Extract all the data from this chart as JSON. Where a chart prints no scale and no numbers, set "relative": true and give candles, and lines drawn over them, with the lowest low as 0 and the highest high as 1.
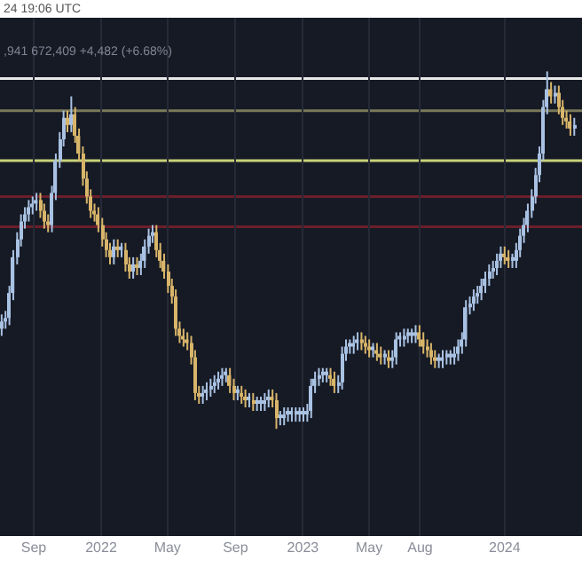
{
  "chart_data": {
    "type": "candlestick",
    "relative": true,
    "annotations": [
      "24 19:06 UTC",
      ",941 672,409 +4,482 (+6.68%)"
    ],
    "colors": [
      "#a9c2e3",
      "#a9c2e3",
      "#a9c2e3",
      "#a9c2e3",
      "#a9c2e3",
      "#a9c2e3",
      "#a9c2e3",
      "#a9c2e3",
      "#a9c2e3",
      "#a9c2e3",
      "#d8b56a",
      "#d8b56a",
      "#d8b56a",
      "#a9c2e3",
      "#a9c2e3",
      "#a9c2e3",
      "#a9c2e3",
      "#d8b56a",
      "#a9c2e3",
      "#d8b56a",
      "#d8b56a",
      "#d8b56a",
      "#d8b56a",
      "#d8b56a",
      "#d8b56a",
      "#d8b56a",
      "#d8b56a",
      "#d8b56a",
      "#d8b56a",
      "#a9c2e3",
      "#d8b56a",
      "#a9c2e3",
      "#d8b56a",
      "#d8b56a",
      "#a9c2e3",
      "#d8b56a",
      "#a9c2e3",
      "#a9c2e3",
      "#a9c2e3",
      "#a9c2e3",
      "#d8b56a",
      "#d8b56a",
      "#d8b56a",
      "#d8b56a",
      "#d8b56a",
      "#d8b56a",
      "#d8b56a",
      "#d8b56a",
      "#d8b56a",
      "#d8b56a",
      "#d8b56a",
      "#d8b56a",
      "#a9c2e3",
      "#a9c2e3",
      "#a9c2e3",
      "#a9c2e3",
      "#a9c2e3",
      "#a9c2e3",
      "#a9c2e3",
      "#d8b56a",
      "#d8b56a",
      "#a9c2e3",
      "#d8b56a",
      "#d8b56a",
      "#a9c2e3",
      "#d8b56a",
      "#a9c2e3",
      "#a9c2e3",
      "#a9c2e3",
      "#a9c2e3",
      "#d8b56a",
      "#d8b56a",
      "#a9c2e3",
      "#a9c2e3",
      "#a9c2e3",
      "#a9c2e3",
      "#a9c2e3",
      "#a9c2e3",
      "#a9c2e3",
      "#a9c2e3",
      "#a9c2e3",
      "#a9c2e3",
      "#a9c2e3",
      "#a9c2e3",
      "#a9c2e3",
      "#d8b56a",
      "#d8b56a",
      "#a9c2e3",
      "#a9c2e3",
      "#a9c2e3",
      "#a9c2e3",
      "#a9c2e3",
      "#a9c2e3",
      "#d8b56a",
      "#d8b56a",
      "#d8b56a",
      "#a9c2e3",
      "#d8b56a",
      "#d8b56a",
      "#a9c2e3",
      "#d8b56a",
      "#a9c2e3",
      "#a9c2e3",
      "#a9c2e3",
      "#a9c2e3",
      "#a9c2e3",
      "#a9c2e3",
      "#a9c2e3",
      "#d8b56a",
      "#d8b56a",
      "#d8b56a",
      "#d8b56a",
      "#d8b56a",
      "#a9c2e3",
      "#a9c2e3",
      "#a9c2e3",
      "#a9c2e3",
      "#a9c2e3",
      "#a9c2e3",
      "#a9c2e3",
      "#a9c2e3",
      "#a9c2e3",
      "#a9c2e3",
      "#a9c2e3",
      "#a9c2e3",
      "#a9c2e3",
      "#a9c2e3",
      "#a9c2e3",
      "#a9c2e3",
      "#a9c2e3",
      "#d8b56a",
      "#d8b56a",
      "#a9c2e3",
      "#a9c2e3",
      "#a9c2e3",
      "#a9c2e3",
      "#a9c2e3",
      "#a9c2e3",
      "#a9c2e3",
      "#a9c2e3",
      "#a9c2e3",
      "#a9c2e3",
      "#d8b56a",
      "#a9c2e3",
      "#d8b56a",
      "#d8b56a",
      "#d8b56a",
      "#d8b56a",
      "#a9c2e3"
    ],
    "x": [
      "2021-07-05",
      "2021-07-12",
      "2021-07-19",
      "2021-07-26",
      "2021-08-02",
      "2021-08-09",
      "2021-08-16",
      "2021-08-23",
      "2021-08-30",
      "2021-09-06",
      "2021-09-13",
      "2021-09-20",
      "2021-09-27",
      "2021-10-04",
      "2021-10-11",
      "2021-10-18",
      "2021-10-25",
      "2021-11-01",
      "2021-11-08",
      "2021-11-15",
      "2021-11-22",
      "2021-11-29",
      "2021-12-06",
      "2021-12-13",
      "2021-12-20",
      "2021-12-27",
      "2022-01-03",
      "2022-01-10",
      "2022-01-17",
      "2022-01-24",
      "2022-01-31",
      "2022-02-07",
      "2022-02-14",
      "2022-02-21",
      "2022-02-28",
      "2022-03-07",
      "2022-03-14",
      "2022-03-21",
      "2022-03-28",
      "2022-04-04",
      "2022-04-11",
      "2022-04-18",
      "2022-04-25",
      "2022-05-02",
      "2022-05-09",
      "2022-05-16",
      "2022-05-23",
      "2022-05-30",
      "2022-06-06",
      "2022-06-13",
      "2022-06-20",
      "2022-06-27",
      "2022-07-04",
      "2022-07-11",
      "2022-07-18",
      "2022-07-25",
      "2022-08-01",
      "2022-08-08",
      "2022-08-15",
      "2022-08-22",
      "2022-08-29",
      "2022-09-05",
      "2022-09-12",
      "2022-09-19",
      "2022-09-26",
      "2022-10-03",
      "2022-10-10",
      "2022-10-17",
      "2022-10-24",
      "2022-10-31",
      "2022-11-07",
      "2022-11-14",
      "2022-11-21",
      "2022-11-28",
      "2022-12-05",
      "2022-12-12",
      "2022-12-19",
      "2022-12-26",
      "2023-01-02",
      "2023-01-09",
      "2023-01-16",
      "2023-01-23",
      "2023-01-30",
      "2023-02-06",
      "2023-02-13",
      "2023-02-20",
      "2023-02-27",
      "2023-03-06",
      "2023-03-13",
      "2023-03-20",
      "2023-03-27",
      "2023-04-03",
      "2023-04-10",
      "2023-04-17",
      "2023-04-24",
      "2023-05-01",
      "2023-05-08",
      "2023-05-15",
      "2023-05-22",
      "2023-05-29",
      "2023-06-05",
      "2023-06-12",
      "2023-06-19",
      "2023-06-26",
      "2023-07-03",
      "2023-07-10",
      "2023-07-17",
      "2023-07-24",
      "2023-07-31",
      "2023-08-07",
      "2023-08-14",
      "2023-08-21",
      "2023-08-28",
      "2023-09-04",
      "2023-09-11",
      "2023-09-18",
      "2023-09-25",
      "2023-10-02",
      "2023-10-09",
      "2023-10-16",
      "2023-10-23",
      "2023-10-30",
      "2023-11-06",
      "2023-11-13",
      "2023-11-20",
      "2023-11-27",
      "2023-12-04",
      "2023-12-11",
      "2023-12-18",
      "2023-12-25",
      "2024-01-01",
      "2024-01-08",
      "2024-01-15",
      "2024-01-22",
      "2024-01-29",
      "2024-02-05",
      "2024-02-12",
      "2024-02-19",
      "2024-02-26",
      "2024-03-04",
      "2024-03-11",
      "2024-03-18",
      "2024-03-25",
      "2024-04-01",
      "2024-04-08",
      "2024-04-15",
      "2024-04-22",
      "2024-04-29",
      "2024-05-06"
    ],
    "ohlc": [
      [
        0.28,
        0.32,
        0.26,
        0.3
      ],
      [
        0.3,
        0.33,
        0.28,
        0.31
      ],
      [
        0.31,
        0.4,
        0.29,
        0.38
      ],
      [
        0.38,
        0.5,
        0.36,
        0.48
      ],
      [
        0.48,
        0.55,
        0.46,
        0.53
      ],
      [
        0.53,
        0.6,
        0.51,
        0.58
      ],
      [
        0.58,
        0.62,
        0.56,
        0.6
      ],
      [
        0.6,
        0.64,
        0.58,
        0.62
      ],
      [
        0.62,
        0.65,
        0.6,
        0.63
      ],
      [
        0.63,
        0.66,
        0.61,
        0.64
      ],
      [
        0.64,
        0.66,
        0.59,
        0.61
      ],
      [
        0.61,
        0.63,
        0.56,
        0.58
      ],
      [
        0.58,
        0.6,
        0.55,
        0.57
      ],
      [
        0.57,
        0.68,
        0.55,
        0.66
      ],
      [
        0.66,
        0.77,
        0.64,
        0.75
      ],
      [
        0.75,
        0.83,
        0.73,
        0.81
      ],
      [
        0.81,
        0.89,
        0.79,
        0.87
      ],
      [
        0.87,
        0.89,
        0.83,
        0.85
      ],
      [
        0.85,
        0.93,
        0.83,
        0.88
      ],
      [
        0.88,
        0.9,
        0.8,
        0.82
      ],
      [
        0.82,
        0.84,
        0.75,
        0.77
      ],
      [
        0.77,
        0.79,
        0.68,
        0.7
      ],
      [
        0.7,
        0.72,
        0.63,
        0.65
      ],
      [
        0.65,
        0.67,
        0.59,
        0.61
      ],
      [
        0.61,
        0.63,
        0.58,
        0.6
      ],
      [
        0.6,
        0.62,
        0.55,
        0.57
      ],
      [
        0.57,
        0.59,
        0.51,
        0.53
      ],
      [
        0.53,
        0.55,
        0.48,
        0.5
      ],
      [
        0.5,
        0.52,
        0.46,
        0.48
      ],
      [
        0.48,
        0.53,
        0.46,
        0.51
      ],
      [
        0.51,
        0.53,
        0.48,
        0.5
      ],
      [
        0.5,
        0.52,
        0.48,
        0.51
      ],
      [
        0.5,
        0.52,
        0.44,
        0.46
      ],
      [
        0.46,
        0.48,
        0.42,
        0.44
      ],
      [
        0.44,
        0.48,
        0.42,
        0.46
      ],
      [
        0.46,
        0.48,
        0.43,
        0.45
      ],
      [
        0.45,
        0.49,
        0.43,
        0.47
      ],
      [
        0.47,
        0.53,
        0.45,
        0.51
      ],
      [
        0.51,
        0.56,
        0.49,
        0.54
      ],
      [
        0.54,
        0.57,
        0.52,
        0.55
      ],
      [
        0.55,
        0.57,
        0.48,
        0.5
      ],
      [
        0.5,
        0.52,
        0.45,
        0.47
      ],
      [
        0.47,
        0.49,
        0.42,
        0.44
      ],
      [
        0.44,
        0.46,
        0.38,
        0.4
      ],
      [
        0.4,
        0.42,
        0.35,
        0.37
      ],
      [
        0.37,
        0.39,
        0.26,
        0.28
      ],
      [
        0.28,
        0.3,
        0.24,
        0.26
      ],
      [
        0.26,
        0.28,
        0.23,
        0.25
      ],
      [
        0.25,
        0.27,
        0.22,
        0.24
      ],
      [
        0.24,
        0.26,
        0.18,
        0.2
      ],
      [
        0.2,
        0.22,
        0.08,
        0.1
      ],
      [
        0.1,
        0.12,
        0.07,
        0.09
      ],
      [
        0.09,
        0.12,
        0.07,
        0.1
      ],
      [
        0.1,
        0.13,
        0.08,
        0.11
      ],
      [
        0.11,
        0.14,
        0.09,
        0.12
      ],
      [
        0.12,
        0.15,
        0.1,
        0.13
      ],
      [
        0.13,
        0.16,
        0.11,
        0.14
      ],
      [
        0.14,
        0.17,
        0.12,
        0.15
      ],
      [
        0.15,
        0.17,
        0.13,
        0.16
      ],
      [
        0.15,
        0.17,
        0.1,
        0.12
      ],
      [
        0.12,
        0.14,
        0.08,
        0.1
      ],
      [
        0.1,
        0.12,
        0.08,
        0.11
      ],
      [
        0.1,
        0.12,
        0.07,
        0.09
      ],
      [
        0.09,
        0.11,
        0.06,
        0.08
      ],
      [
        0.08,
        0.1,
        0.06,
        0.09
      ],
      [
        0.08,
        0.1,
        0.05,
        0.07
      ],
      [
        0.07,
        0.09,
        0.05,
        0.08
      ],
      [
        0.07,
        0.09,
        0.05,
        0.08
      ],
      [
        0.07,
        0.1,
        0.05,
        0.08
      ],
      [
        0.08,
        0.11,
        0.06,
        0.09
      ],
      [
        0.09,
        0.11,
        0.06,
        0.08
      ],
      [
        0.08,
        0.1,
        0.0,
        0.03
      ],
      [
        0.03,
        0.05,
        0.01,
        0.04
      ],
      [
        0.03,
        0.06,
        0.01,
        0.04
      ],
      [
        0.04,
        0.06,
        0.02,
        0.05
      ],
      [
        0.04,
        0.06,
        0.02,
        0.05
      ],
      [
        0.04,
        0.06,
        0.02,
        0.05
      ],
      [
        0.04,
        0.06,
        0.02,
        0.05
      ],
      [
        0.04,
        0.06,
        0.02,
        0.05
      ],
      [
        0.04,
        0.07,
        0.02,
        0.05
      ],
      [
        0.05,
        0.14,
        0.03,
        0.12
      ],
      [
        0.12,
        0.16,
        0.1,
        0.14
      ],
      [
        0.14,
        0.17,
        0.12,
        0.15
      ],
      [
        0.15,
        0.17,
        0.13,
        0.16
      ],
      [
        0.15,
        0.17,
        0.13,
        0.16
      ],
      [
        0.15,
        0.17,
        0.12,
        0.14
      ],
      [
        0.14,
        0.16,
        0.1,
        0.12
      ],
      [
        0.12,
        0.15,
        0.1,
        0.13
      ],
      [
        0.13,
        0.23,
        0.11,
        0.21
      ],
      [
        0.21,
        0.25,
        0.19,
        0.23
      ],
      [
        0.23,
        0.25,
        0.21,
        0.24
      ],
      [
        0.23,
        0.26,
        0.21,
        0.24
      ],
      [
        0.24,
        0.27,
        0.22,
        0.25
      ],
      [
        0.25,
        0.27,
        0.22,
        0.24
      ],
      [
        0.24,
        0.26,
        0.21,
        0.23
      ],
      [
        0.23,
        0.25,
        0.2,
        0.22
      ],
      [
        0.22,
        0.24,
        0.2,
        0.23
      ],
      [
        0.22,
        0.24,
        0.19,
        0.21
      ],
      [
        0.21,
        0.23,
        0.18,
        0.2
      ],
      [
        0.2,
        0.22,
        0.18,
        0.21
      ],
      [
        0.2,
        0.22,
        0.17,
        0.19
      ],
      [
        0.19,
        0.22,
        0.17,
        0.2
      ],
      [
        0.2,
        0.27,
        0.18,
        0.25
      ],
      [
        0.25,
        0.27,
        0.23,
        0.26
      ],
      [
        0.25,
        0.28,
        0.23,
        0.26
      ],
      [
        0.26,
        0.28,
        0.24,
        0.27
      ],
      [
        0.26,
        0.28,
        0.24,
        0.27
      ],
      [
        0.26,
        0.29,
        0.24,
        0.27
      ],
      [
        0.27,
        0.29,
        0.23,
        0.25
      ],
      [
        0.25,
        0.27,
        0.21,
        0.23
      ],
      [
        0.23,
        0.25,
        0.2,
        0.22
      ],
      [
        0.22,
        0.24,
        0.18,
        0.2
      ],
      [
        0.2,
        0.22,
        0.17,
        0.19
      ],
      [
        0.19,
        0.21,
        0.17,
        0.2
      ],
      [
        0.19,
        0.22,
        0.17,
        0.2
      ],
      [
        0.2,
        0.22,
        0.18,
        0.21
      ],
      [
        0.2,
        0.22,
        0.18,
        0.21
      ],
      [
        0.2,
        0.23,
        0.18,
        0.21
      ],
      [
        0.21,
        0.25,
        0.19,
        0.23
      ],
      [
        0.23,
        0.27,
        0.21,
        0.25
      ],
      [
        0.25,
        0.36,
        0.23,
        0.34
      ],
      [
        0.34,
        0.37,
        0.32,
        0.35
      ],
      [
        0.35,
        0.39,
        0.33,
        0.37
      ],
      [
        0.37,
        0.4,
        0.35,
        0.38
      ],
      [
        0.38,
        0.42,
        0.36,
        0.4
      ],
      [
        0.4,
        0.44,
        0.38,
        0.42
      ],
      [
        0.42,
        0.46,
        0.4,
        0.44
      ],
      [
        0.44,
        0.47,
        0.42,
        0.45
      ],
      [
        0.45,
        0.49,
        0.43,
        0.47
      ],
      [
        0.47,
        0.51,
        0.45,
        0.49
      ],
      [
        0.49,
        0.51,
        0.46,
        0.48
      ],
      [
        0.48,
        0.5,
        0.45,
        0.47
      ],
      [
        0.47,
        0.49,
        0.45,
        0.48
      ],
      [
        0.47,
        0.52,
        0.45,
        0.5
      ],
      [
        0.5,
        0.56,
        0.48,
        0.54
      ],
      [
        0.54,
        0.59,
        0.52,
        0.57
      ],
      [
        0.57,
        0.63,
        0.55,
        0.61
      ],
      [
        0.61,
        0.67,
        0.59,
        0.65
      ],
      [
        0.65,
        0.73,
        0.63,
        0.71
      ],
      [
        0.71,
        0.79,
        0.69,
        0.77
      ],
      [
        0.77,
        0.92,
        0.75,
        0.9
      ],
      [
        0.9,
        1.0,
        0.88,
        0.95
      ],
      [
        0.95,
        0.97,
        0.91,
        0.93
      ],
      [
        0.93,
        0.96,
        0.91,
        0.94
      ],
      [
        0.94,
        0.96,
        0.88,
        0.9
      ],
      [
        0.9,
        0.92,
        0.85,
        0.87
      ],
      [
        0.87,
        0.89,
        0.84,
        0.86
      ],
      [
        0.86,
        0.88,
        0.82,
        0.84
      ],
      [
        0.84,
        0.87,
        0.82,
        0.85
      ]
    ],
    "xlim": [
      "2021-07-02",
      "2024-05-20"
    ],
    "xticks": [
      {
        "value": "2021-09-01",
        "label": "Sep"
      },
      {
        "value": "2022-01-01",
        "label": "2022"
      },
      {
        "value": "2022-05-01",
        "label": "May"
      },
      {
        "value": "2022-09-01",
        "label": "Sep"
      },
      {
        "value": "2023-01-01",
        "label": "2023"
      },
      {
        "value": "2023-05-01",
        "label": "May"
      },
      {
        "value": "2023-08-01",
        "label": "Aug"
      },
      {
        "value": "2024-01-01",
        "label": "2024"
      }
    ],
    "tick_labels": "x",
    "grid": "x",
    "ref_lines": [
      {
        "axis": "y",
        "value": 0.98,
        "color": "#e8e8e8"
      },
      {
        "axis": "y",
        "value": 0.89,
        "color": "#7a7a58"
      },
      {
        "axis": "y",
        "value": 0.75,
        "color": "#c8d27a"
      },
      {
        "axis": "y",
        "value": 0.65,
        "color": "#6b1f2a"
      },
      {
        "axis": "y",
        "value": 0.565,
        "color": "#6b1f2a"
      }
    ]
  }
}
